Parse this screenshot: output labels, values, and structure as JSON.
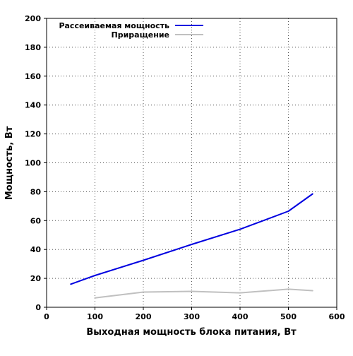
{
  "chart_data": {
    "type": "line",
    "title": "",
    "xlabel": "Выходная мощность блока питания, Вт",
    "ylabel": "Мощность, Вт",
    "xlim": [
      0,
      600
    ],
    "ylim": [
      0,
      200
    ],
    "xticks": [
      0,
      100,
      200,
      300,
      400,
      500,
      600
    ],
    "yticks": [
      0,
      20,
      40,
      60,
      80,
      100,
      120,
      140,
      160,
      180,
      200
    ],
    "grid": true,
    "legend_position": "top-left",
    "series": [
      {
        "name": "Рассеиваемая мощность",
        "color": "#0000e0",
        "x": [
          50,
          100,
          200,
          300,
          400,
          500,
          550
        ],
        "y": [
          16,
          22,
          32.5,
          43.5,
          54,
          66.5,
          78.5
        ]
      },
      {
        "name": "Приращение",
        "color": "#c0c0c0",
        "x": [
          100,
          200,
          300,
          400,
          500,
          550
        ],
        "y": [
          6.5,
          10.5,
          11,
          10,
          12.5,
          11.5
        ]
      }
    ]
  }
}
